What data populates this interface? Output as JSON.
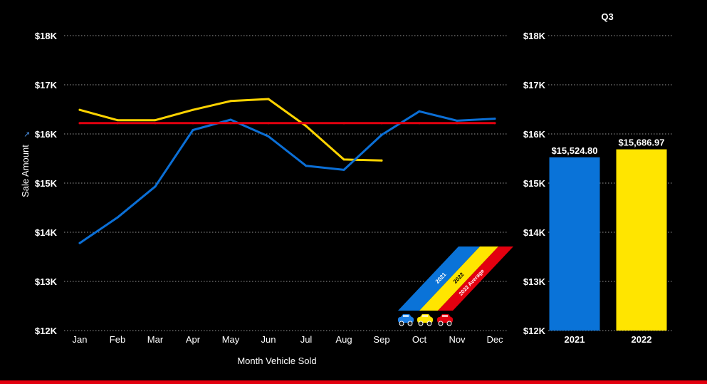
{
  "colors": {
    "background": "#000000",
    "series_2021": "#0b6fd6",
    "series_2022": "#ffd400",
    "average_2022": "#e3000f",
    "bar_2021": "#0a73d8",
    "bar_2022": "#ffe500",
    "gridline": "#9a9a9a",
    "text": "#ffffff"
  },
  "legend": {
    "items": [
      "2021",
      "2022",
      "2022 Average"
    ],
    "icons": [
      "car-icon-blue",
      "car-icon-yellow",
      "car-icon-red"
    ]
  },
  "chart_data": [
    {
      "type": "line",
      "title": "",
      "xlabel": "Month Vehicle Sold",
      "ylabel": "Sale Amount",
      "categories": [
        "Jan",
        "Feb",
        "Mar",
        "Apr",
        "May",
        "Jun",
        "Jul",
        "Aug",
        "Sep",
        "Oct",
        "Nov",
        "Dec"
      ],
      "ylim": [
        12000,
        18000
      ],
      "yticks": [
        {
          "value": 12000,
          "label": "$12K"
        },
        {
          "value": 13000,
          "label": "$13K"
        },
        {
          "value": 14000,
          "label": "$14K"
        },
        {
          "value": 15000,
          "label": "$15K"
        },
        {
          "value": 16000,
          "label": "$16K"
        },
        {
          "value": 17000,
          "label": "$17K"
        },
        {
          "value": 18000,
          "label": "$18K"
        }
      ],
      "grid": true,
      "series": [
        {
          "name": "2021",
          "color": "#0b6fd6",
          "values": [
            13780,
            14300,
            14930,
            16080,
            16290,
            15950,
            15350,
            15270,
            15980,
            16460,
            16270,
            16310
          ]
        },
        {
          "name": "2022",
          "color": "#ffd400",
          "values": [
            16490,
            16280,
            16280,
            16490,
            16670,
            16710,
            16160,
            15480,
            15460,
            null,
            null,
            null
          ]
        },
        {
          "name": "2022 Average",
          "color": "#e3000f",
          "values": [
            16220,
            16220,
            16220,
            16220,
            16220,
            16220,
            16220,
            16220,
            16220,
            16220,
            16220,
            16220
          ]
        }
      ]
    },
    {
      "type": "bar",
      "title": "Q3",
      "xlabel": "",
      "ylabel": "",
      "categories": [
        "2021",
        "2022"
      ],
      "values": [
        15524.8,
        15686.97
      ],
      "data_labels": [
        "$15,524.80",
        "$15,686.97"
      ],
      "colors": [
        "#0a73d8",
        "#ffe500"
      ],
      "ylim": [
        12000,
        18000
      ],
      "yticks": [
        {
          "value": 12000,
          "label": "$12K"
        },
        {
          "value": 13000,
          "label": "$13K"
        },
        {
          "value": 14000,
          "label": "$14K"
        },
        {
          "value": 15000,
          "label": "$15K"
        },
        {
          "value": 16000,
          "label": "$16K"
        },
        {
          "value": 17000,
          "label": "$17K"
        },
        {
          "value": 18000,
          "label": "$18K"
        }
      ],
      "grid": true
    }
  ]
}
